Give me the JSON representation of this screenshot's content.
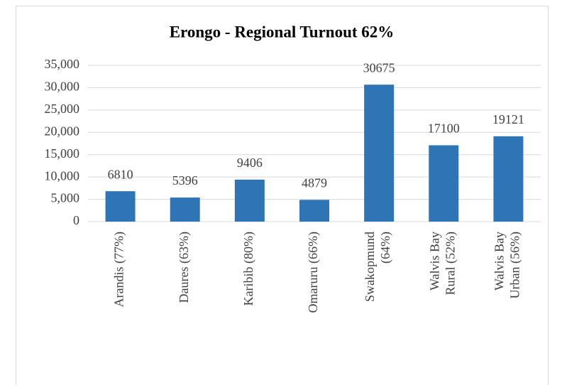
{
  "chart_data": {
    "type": "bar",
    "title": "Erongo - Regional Turnout 62%",
    "categories": [
      "Arandis (77%)",
      "Daures (63%)",
      "Karibib (80%)",
      "Omaruru (66%)",
      "Swakopmund (64%)",
      "Walvis Bay Rural (52%)",
      "Walvis Bay Urban (56%)"
    ],
    "values": [
      6810,
      5396,
      9406,
      4879,
      30675,
      17100,
      19121
    ],
    "color": "#2e75b6",
    "ylim": [
      0,
      35000
    ],
    "yticks": [
      0,
      {
        "value": 5000,
        "label": "5,000"
      },
      {
        "value": 10000,
        "label": "10,000"
      },
      {
        "value": 15000,
        "label": "15,000"
      },
      {
        "value": 20000,
        "label": "20,000"
      },
      {
        "value": 25000,
        "label": "25,000"
      },
      {
        "value": 30000,
        "label": "30,000"
      },
      {
        "value": 35000,
        "label": "35,000"
      }
    ],
    "grid": true
  }
}
